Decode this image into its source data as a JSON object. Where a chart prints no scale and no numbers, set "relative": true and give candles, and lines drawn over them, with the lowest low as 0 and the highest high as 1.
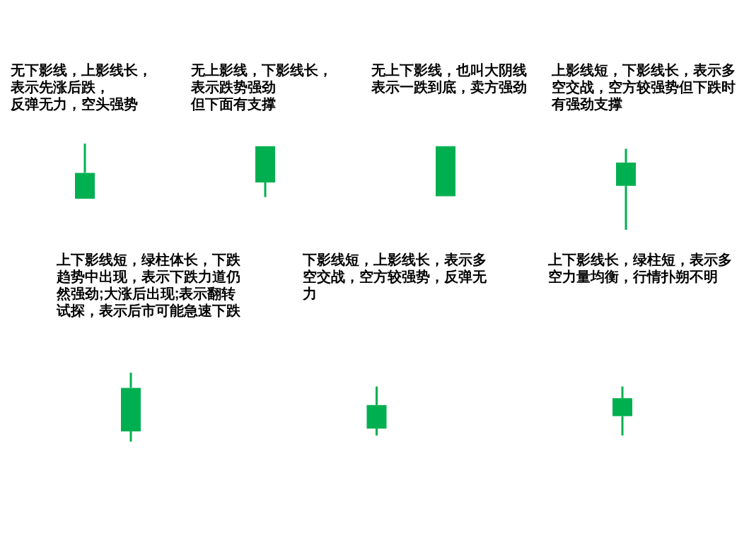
{
  "chart_data": [
    {
      "type": "candlestick",
      "relative": true,
      "categories": [
        null,
        null,
        null,
        null
      ],
      "ohlc": [
        [
          0.66,
          1.0,
          0.36,
          0.36
        ],
        [
          0.97,
          0.97,
          0.38,
          0.55
        ],
        [
          0.97,
          0.97,
          0.39,
          0.39
        ],
        [
          0.78,
          0.94,
          0.0,
          0.51
        ]
      ],
      "colors": [
        "#00b050",
        "#00b050",
        "#00b050",
        "#00b050"
      ],
      "annotations": [
        "无下影线，上影线长，表示先涨后跌，反弹无力，空头强势",
        "无上影线，下影线长，表示跌势强劲但下面有支撑",
        "无上下影线，也叫大阴线表示一跌到底，卖方强劲",
        "上影线短，下影线长，表示多空交战，空方较强势但下跌时有强劲支撑"
      ]
    },
    {
      "type": "candlestick",
      "relative": true,
      "categories": [
        null,
        null,
        null
      ],
      "ohlc": [
        [
          0.78,
          1.0,
          0.0,
          0.15
        ],
        [
          0.53,
          0.8,
          0.09,
          0.19
        ],
        [
          0.63,
          0.8,
          0.09,
          0.37
        ]
      ],
      "colors": [
        "#00b050",
        "#00b050",
        "#00b050"
      ],
      "annotations": [
        "上下影线短，绿柱体长，下跌趋势中出现，表示下跌力道仍然强劲;大涨后出现;表示翻转试探，表示后市可能急速下跌",
        "下影线短，上影线长，表示多空交战，空方较强势，反弹无力",
        "上下影线长，绿柱短，表示多空力量均衡，行情扑朔不明"
      ]
    }
  ]
}
